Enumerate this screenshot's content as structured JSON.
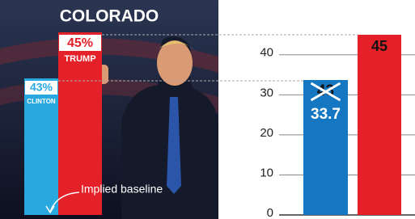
{
  "poster": {
    "title": "COLORADO",
    "trump_pct": "45%",
    "trump_name": "TRUMP",
    "clinton_pct": "43%",
    "clinton_name": "CLINTON",
    "note": "Implied baseline"
  },
  "chart_data": {
    "type": "bar",
    "categories": [
      null,
      null
    ],
    "values": [
      33.7,
      45
    ],
    "colors": [
      "#1577c2",
      "#e42028"
    ],
    "struck_label": "43",
    "ylim": [
      0,
      45
    ],
    "yticks": [
      0,
      10,
      20,
      30,
      40
    ],
    "grid": true
  }
}
